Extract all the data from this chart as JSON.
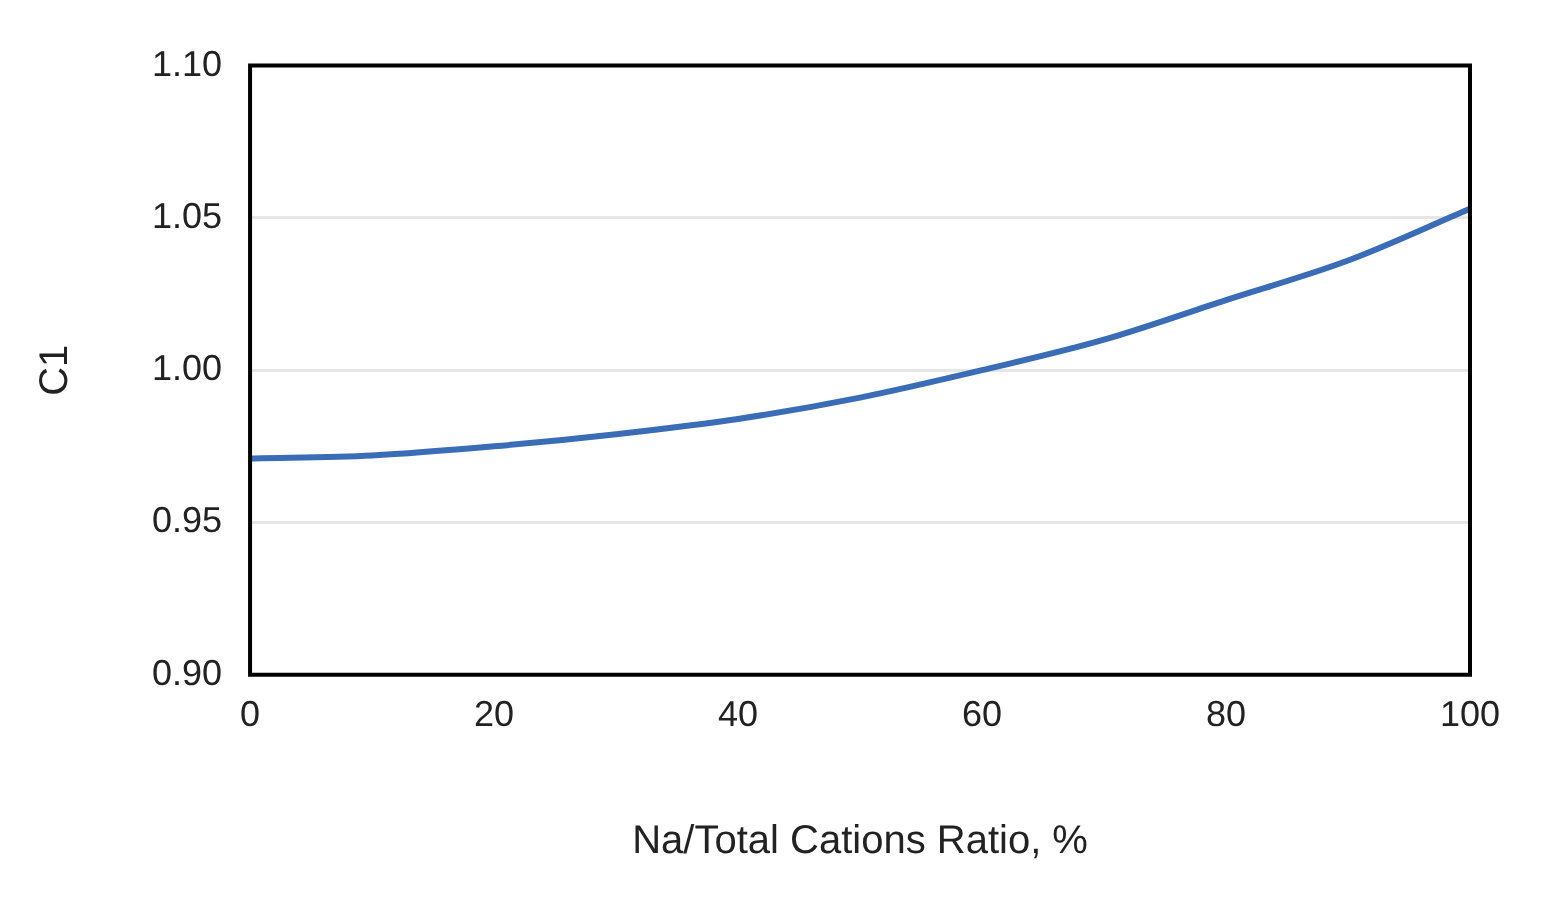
{
  "chart_data": {
    "type": "line",
    "xlabel": "Na/Total Cations Ratio, %",
    "ylabel": "C1",
    "x": [
      0,
      10,
      20,
      30,
      40,
      50,
      60,
      70,
      80,
      90,
      100
    ],
    "series": [
      {
        "color": "#3a6db5",
        "values": [
          0.971,
          0.972,
          0.975,
          0.979,
          0.984,
          0.991,
          1.0,
          1.01,
          1.023,
          1.036,
          1.053
        ]
      }
    ],
    "xlim": [
      0,
      100
    ],
    "xticks": [
      0,
      20,
      40,
      60,
      80,
      100
    ],
    "ylim": [
      0.9,
      1.1
    ],
    "yticks": [
      {
        "value": 0.9,
        "label": "0.90"
      },
      0.95,
      {
        "value": 1.0,
        "label": "1.00"
      },
      1.05,
      {
        "value": 1.1,
        "label": "1.10"
      }
    ],
    "grid": "y",
    "legend": false,
    "marker": "none",
    "line_style": "solid"
  }
}
